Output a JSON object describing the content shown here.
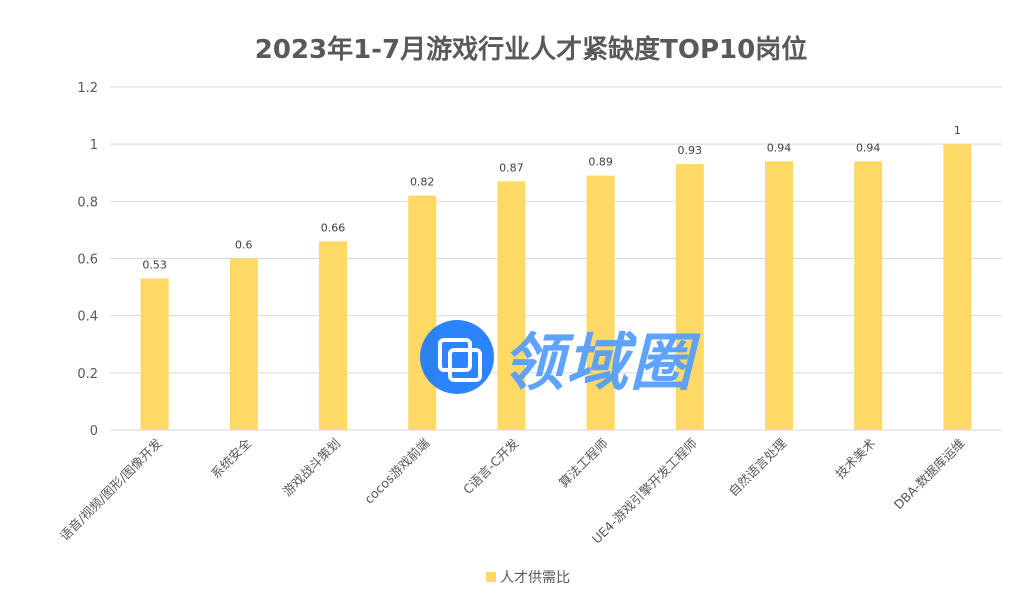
{
  "chart_data": {
    "type": "bar",
    "title": "2023年1-7月游戏行业人才紧缺度TOP10岗位",
    "categories": [
      "语音/视频/图形/图像开发",
      "系统安全",
      "游戏战斗策划",
      "cocos游戏前端",
      "C语言-C开发",
      "算法工程师",
      "UE4-游戏引擎开发工程师",
      "自然语言处理",
      "技术美术",
      "DBA-数据库运维"
    ],
    "series": [
      {
        "name": "人才供需比",
        "values": [
          0.53,
          0.6,
          0.66,
          0.82,
          0.87,
          0.89,
          0.93,
          0.94,
          0.94,
          1
        ],
        "color": "#ffd966"
      }
    ],
    "xlabel": "",
    "ylabel": "",
    "ylim": [
      0,
      1.2
    ],
    "yticks": [
      0,
      0.2,
      0.4,
      0.6,
      0.8,
      1,
      1.2
    ],
    "grid": true,
    "legend": "bottom"
  },
  "watermark": {
    "text": "领域圈",
    "color": "#1677ff"
  }
}
